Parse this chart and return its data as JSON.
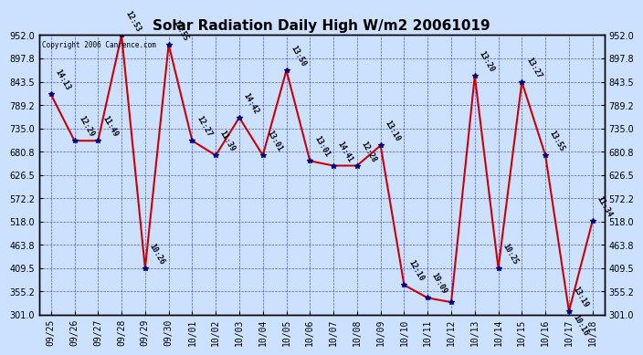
{
  "title": "Solar Radiation Daily High W/m2 20061019",
  "copyright": "Copyright 2006 Canrence.com",
  "dates": [
    "09/25",
    "09/26",
    "09/27",
    "09/28",
    "09/29",
    "09/30",
    "10/01",
    "10/02",
    "10/03",
    "10/04",
    "10/05",
    "10/06",
    "10/07",
    "10/08",
    "10/09",
    "10/10",
    "10/11",
    "10/12",
    "10/13",
    "10/14",
    "10/15",
    "10/16",
    "10/17",
    "10/18"
  ],
  "values": [
    814,
    706,
    706,
    952,
    409,
    930,
    706,
    672,
    760,
    672,
    870,
    659,
    648,
    648,
    695,
    370,
    340,
    330,
    857,
    409,
    843,
    672,
    309,
    519
  ],
  "labels": [
    "14:13",
    "12:29",
    "11:49",
    "12:53",
    "10:26",
    "12:55",
    "12:27",
    "11:39",
    "14:42",
    "13:01",
    "13:50",
    "13:01",
    "14:41",
    "12:28",
    "13:10",
    "12:10",
    "19:09",
    "",
    "13:20",
    "10:25",
    "13:27",
    "13:55",
    "13:19",
    "11:34"
  ],
  "labels2": [
    "",
    "",
    "",
    "",
    "",
    "",
    "",
    "",
    "",
    "",
    "",
    "",
    "",
    "",
    "",
    "",
    "",
    "",
    "",
    "",
    "",
    "",
    "10:16",
    ""
  ],
  "ylim": [
    301.0,
    952.0
  ],
  "yticks": [
    301.0,
    355.2,
    409.5,
    463.8,
    518.0,
    572.2,
    626.5,
    680.8,
    735.0,
    789.2,
    843.5,
    897.8,
    952.0
  ],
  "bg_color": "#cce0ff",
  "line_color": "#cc0000",
  "marker_color": "#000080",
  "grid_color": "#3333cc",
  "label_color": "#000000",
  "tick_color": "#000000",
  "title_fontsize": 11,
  "label_fontsize": 6,
  "tick_fontsize": 7
}
